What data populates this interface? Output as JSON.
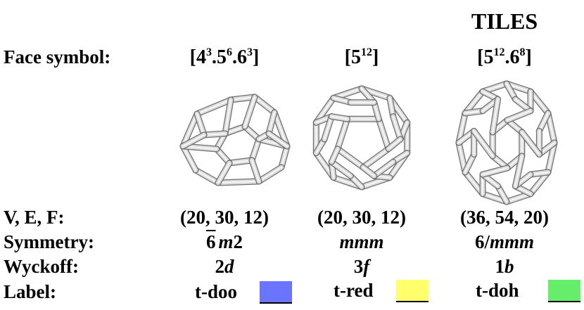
{
  "header": {
    "title": "TILES"
  },
  "row_labels": {
    "face_symbol": "Face symbol:",
    "vef": "V, E, F:",
    "symmetry": "Symmetry:",
    "wyckoff": "Wyckoff:",
    "label": "Label:"
  },
  "tiles": [
    {
      "face_symbol": {
        "b1": "4",
        "e1": "3",
        "b2": "5",
        "e2": "6",
        "b3": "6",
        "e3": "3"
      },
      "vef": "(20, 30, 12)",
      "symmetry": {
        "bar_digit": "6",
        "italic": "m",
        "rest": "2"
      },
      "wyckoff": {
        "num": "2",
        "letter": "d"
      },
      "label": "t-doo",
      "color": "#6b74ff"
    },
    {
      "face_symbol": {
        "b1": "5",
        "e1": "12"
      },
      "vef": "(20, 30, 12)",
      "symmetry": {
        "italic": "mmm"
      },
      "wyckoff": {
        "num": "3",
        "letter": "f"
      },
      "label": "t-red",
      "color": "#ffff6b"
    },
    {
      "face_symbol": {
        "b1": "5",
        "e1": "12",
        "b2": "6",
        "e2": "8"
      },
      "vef": "(36, 54, 20)",
      "symmetry": {
        "pre": "6/",
        "italic": "mmm"
      },
      "wyckoff": {
        "num": "1",
        "letter": "b"
      },
      "label": "t-doh",
      "color": "#66ee6b"
    }
  ]
}
